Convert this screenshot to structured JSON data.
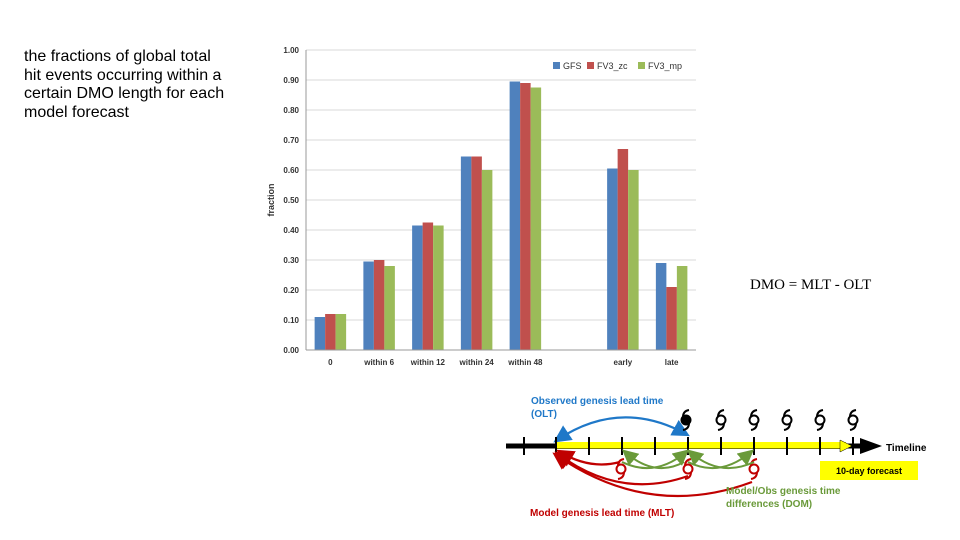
{
  "caption": {
    "lines": [
      "the fractions of global total",
      "hit events occurring within a",
      "certain DMO length for each",
      "model forecast"
    ]
  },
  "equation": "DMO = MLT - OLT",
  "chart_data": {
    "type": "bar",
    "title": "",
    "xlabel": "",
    "ylabel": "fraction",
    "ylim": [
      0,
      1.0
    ],
    "yticks": [
      "0.00",
      "0.10",
      "0.20",
      "0.30",
      "0.40",
      "0.50",
      "0.60",
      "0.70",
      "0.80",
      "0.90",
      "1.00"
    ],
    "grid": true,
    "legend_position": "top-right",
    "categories": [
      "0",
      "within 6",
      "within 12",
      "within 24",
      "within 48",
      "",
      "early",
      "late"
    ],
    "series": [
      {
        "name": "GFS",
        "color": "#4f81bd",
        "values": [
          0.11,
          0.295,
          0.415,
          0.645,
          0.895,
          null,
          0.605,
          0.29
        ]
      },
      {
        "name": "FV3_zc",
        "color": "#c0504d",
        "values": [
          0.12,
          0.3,
          0.425,
          0.645,
          0.89,
          null,
          0.67,
          0.21
        ]
      },
      {
        "name": "FV3_mp",
        "color": "#9bbb59",
        "values": [
          0.12,
          0.28,
          0.415,
          0.6,
          0.875,
          null,
          0.6,
          0.28
        ]
      }
    ]
  },
  "diagram": {
    "olt_label_line1": "Observed genesis lead time",
    "olt_label_line2": "(OLT)",
    "timeline_label": "Timeline",
    "forecast_label": "10-day forecast",
    "dom_label_line1": "Model/Obs genesis time",
    "dom_label_line2": "differences (DOM)",
    "mlt_label": "Model genesis lead time (MLT)",
    "colors": {
      "olt": "#1f78c8",
      "mlt": "#c00000",
      "dom": "#6a9a3a",
      "forecast": "#ffff00",
      "axis": "#000000"
    }
  }
}
